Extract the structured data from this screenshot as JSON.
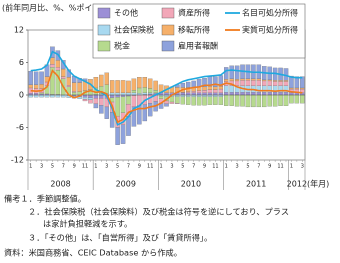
{
  "chart_data": {
    "type": "stacked-bar-line",
    "y_label": "(前年同月比、%、%ポイント)",
    "ylim": [
      -12,
      12
    ],
    "yticks": [
      12,
      6,
      0,
      -6,
      -12
    ],
    "categories": [
      "1",
      null,
      "3",
      null,
      "5",
      null,
      "7",
      null,
      "9",
      null,
      "11",
      null,
      "1",
      null,
      "3",
      null,
      "5",
      null,
      "7",
      null,
      "9",
      null,
      "11",
      null,
      "1",
      null,
      "3",
      null,
      "5",
      null,
      "7",
      null,
      "9",
      null,
      "11",
      null,
      "1",
      null,
      "3",
      null,
      "5",
      null,
      "7",
      null,
      "9",
      null,
      "11",
      null,
      "1",
      null,
      "3"
    ],
    "year_labels": [
      "2008",
      "2009",
      "2010",
      "2011",
      "2012"
    ],
    "x_unit": "(年月)",
    "series": [
      {
        "name": "その他",
        "kind": "bar",
        "color": "#9c8fd6",
        "values": [
          0.3,
          0.3,
          0.2,
          0.2,
          0.1,
          0.1,
          0.0,
          -0.1,
          -0.2,
          -0.3,
          -0.4,
          -0.5,
          -0.6,
          -0.6,
          -0.6,
          -0.5,
          -0.4,
          -0.3,
          -0.2,
          -0.1,
          0.0,
          0.1,
          0.2,
          0.3,
          0.4,
          0.4,
          0.4,
          0.4,
          0.4,
          0.4,
          0.4,
          0.4,
          0.4,
          0.4,
          0.4,
          0.4,
          0.5,
          0.5,
          0.5,
          0.5,
          0.5,
          0.5,
          0.5,
          0.5,
          0.5,
          0.5,
          0.5,
          0.5,
          0.4,
          0.4,
          0.4
        ]
      },
      {
        "name": "社会保険税",
        "kind": "bar",
        "color": "#a8d9f0",
        "values": [
          -0.4,
          -0.4,
          -0.4,
          -0.4,
          -0.4,
          -0.4,
          -0.4,
          -0.4,
          -0.4,
          -0.4,
          -0.4,
          -0.4,
          0.1,
          0.2,
          0.3,
          0.4,
          0.4,
          0.4,
          0.4,
          0.4,
          0.3,
          0.3,
          0.2,
          0.1,
          -0.2,
          -0.3,
          -0.3,
          -0.3,
          -0.3,
          -0.3,
          -0.3,
          -0.3,
          -0.3,
          -0.3,
          -0.3,
          -0.3,
          1.2,
          1.2,
          1.2,
          1.2,
          1.2,
          1.2,
          1.2,
          1.2,
          1.2,
          1.2,
          1.2,
          1.2,
          0.0,
          0.0,
          0.0
        ]
      },
      {
        "name": "税金",
        "kind": "bar",
        "color": "#b6da8e",
        "values": [
          0.0,
          0.0,
          0.2,
          1.5,
          5.0,
          4.5,
          3.0,
          1.5,
          0.5,
          0.6,
          0.8,
          1.0,
          1.2,
          1.4,
          1.6,
          -0.8,
          -3.5,
          -3.0,
          -1.5,
          0.5,
          1.0,
          1.0,
          0.8,
          0.5,
          -0.5,
          -0.8,
          -1.0,
          -1.2,
          -1.4,
          -1.5,
          -1.6,
          -1.6,
          -1.6,
          -1.5,
          -1.5,
          -1.5,
          -2.0,
          -2.0,
          -2.1,
          -2.1,
          -2.2,
          -2.2,
          -2.2,
          -2.2,
          -2.1,
          -2.1,
          -2.0,
          -2.0,
          -1.5,
          -1.5,
          -1.5
        ]
      },
      {
        "name": "資産所得",
        "kind": "bar",
        "color": "#f2a7b8",
        "values": [
          1.0,
          0.9,
          0.8,
          0.7,
          0.6,
          0.5,
          0.4,
          0.3,
          0.2,
          0.0,
          -0.3,
          -0.6,
          -1.0,
          -1.3,
          -1.6,
          -1.9,
          -2.1,
          -2.2,
          -2.2,
          -2.1,
          -2.0,
          -1.8,
          -1.5,
          -1.2,
          -0.8,
          -0.5,
          -0.3,
          -0.1,
          0.1,
          0.2,
          0.3,
          0.4,
          0.5,
          0.6,
          0.6,
          0.7,
          0.8,
          0.9,
          0.9,
          1.0,
          1.0,
          1.0,
          1.0,
          0.9,
          0.9,
          0.8,
          0.8,
          0.8,
          0.7,
          0.7,
          0.7
        ]
      },
      {
        "name": "移転所得",
        "kind": "bar",
        "color": "#f6b06a",
        "values": [
          0.6,
          0.7,
          0.8,
          1.0,
          1.2,
          1.3,
          1.4,
          1.5,
          1.6,
          1.7,
          1.8,
          1.9,
          2.0,
          2.1,
          2.2,
          2.3,
          2.3,
          2.3,
          2.2,
          2.1,
          2.0,
          1.9,
          1.8,
          1.7,
          1.5,
          1.3,
          1.1,
          1.0,
          0.9,
          0.8,
          0.7,
          0.7,
          0.6,
          0.6,
          0.5,
          0.5,
          0.4,
          0.4,
          0.3,
          0.3,
          0.3,
          0.3,
          0.3,
          0.2,
          0.2,
          0.2,
          0.2,
          0.2,
          0.2,
          0.2,
          0.2
        ]
      },
      {
        "name": "雇用者報酬",
        "kind": "bar",
        "color": "#8ea2dc",
        "values": [
          2.5,
          2.4,
          2.3,
          2.2,
          2.0,
          1.8,
          1.6,
          1.4,
          1.2,
          0.8,
          0.4,
          0.0,
          -0.8,
          -1.5,
          -2.2,
          -2.8,
          -3.2,
          -3.5,
          -3.6,
          -3.6,
          -3.4,
          -3.0,
          -2.4,
          -1.8,
          -1.0,
          -0.5,
          0.0,
          0.5,
          0.8,
          1.0,
          1.2,
          1.4,
          1.6,
          1.8,
          1.9,
          2.0,
          2.2,
          2.4,
          2.5,
          2.6,
          2.6,
          2.6,
          2.6,
          2.5,
          2.4,
          2.3,
          2.3,
          2.2,
          2.2,
          2.1,
          2.1
        ]
      },
      {
        "name": "名目可処分所得",
        "kind": "line",
        "color": "#1fa9df",
        "values": [
          4.5,
          4.6,
          4.8,
          5.5,
          8.0,
          7.5,
          6.0,
          4.5,
          3.5,
          3.0,
          2.5,
          2.0,
          1.0,
          0.5,
          -0.2,
          -2.5,
          -5.5,
          -5.0,
          -4.0,
          -2.5,
          -2.0,
          -1.0,
          -0.5,
          0.0,
          0.5,
          1.0,
          1.5,
          2.0,
          2.5,
          2.8,
          3.0,
          3.2,
          3.4,
          3.5,
          3.6,
          3.7,
          4.5,
          4.6,
          4.5,
          4.4,
          4.3,
          4.2,
          4.2,
          4.1,
          4.0,
          4.0,
          3.8,
          3.6,
          3.3,
          3.2,
          3.2
        ]
      },
      {
        "name": "実質可処分所得",
        "kind": "line",
        "color": "#f07a1e",
        "values": [
          0.8,
          0.7,
          0.8,
          1.5,
          4.5,
          3.5,
          1.5,
          0.0,
          -0.5,
          -0.2,
          0.5,
          0.8,
          0.5,
          0.6,
          0.2,
          -2.0,
          -5.0,
          -4.5,
          -3.2,
          -2.8,
          -2.5,
          -2.5,
          -2.2,
          -2.0,
          -1.5,
          -0.8,
          0.0,
          0.5,
          1.0,
          1.2,
          1.4,
          1.5,
          1.8,
          1.8,
          2.0,
          1.8,
          2.2,
          2.0,
          1.5,
          1.2,
          1.0,
          1.0,
          0.8,
          0.8,
          0.8,
          0.7,
          0.8,
          0.8,
          0.6,
          0.5,
          0.4
        ]
      }
    ],
    "notes": [
      "備考１．季節調整値。",
      "２．社会保険税（社会保険料）及び税金は符号を逆にしており、プラス",
      "は家計負担軽減を示す。",
      "３．「その他」は、「自営所得」及び「賃貸所得」。",
      "資料：米国商務省、CEIC Database から作成。"
    ]
  }
}
